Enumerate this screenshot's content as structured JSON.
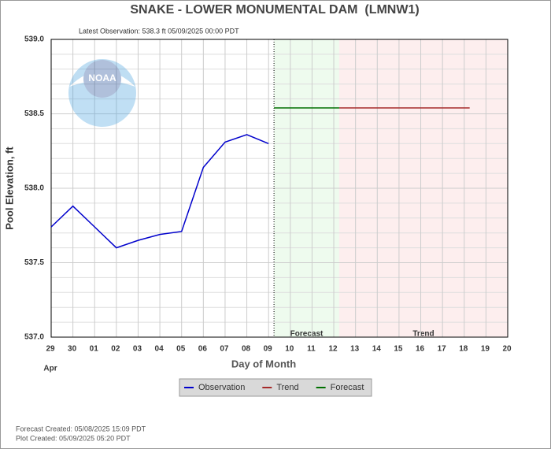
{
  "chart_data": {
    "type": "line",
    "title": "SNAKE - LOWER MONUMENTAL DAM  (LMNW1)",
    "subtitle": "Latest Observation: 538.3 ft 05/09/2025 00:00 PDT",
    "x_label": "Day of Month",
    "y_label": "Pool Elevation, ft",
    "x_sublabel": "Apr",
    "xlim": [
      0,
      21
    ],
    "xticks": [
      {
        "value": 0,
        "label": "29"
      },
      {
        "value": 1,
        "label": "30"
      },
      {
        "value": 2,
        "label": "01"
      },
      {
        "value": 3,
        "label": "02"
      },
      {
        "value": 4,
        "label": "03"
      },
      {
        "value": 5,
        "label": "04"
      },
      {
        "value": 6,
        "label": "05"
      },
      {
        "value": 7,
        "label": "06"
      },
      {
        "value": 8,
        "label": "07"
      },
      {
        "value": 9,
        "label": "08"
      },
      {
        "value": 10,
        "label": "09"
      },
      {
        "value": 11,
        "label": "10"
      },
      {
        "value": 12,
        "label": "11"
      },
      {
        "value": 13,
        "label": "12"
      },
      {
        "value": 14,
        "label": "13"
      },
      {
        "value": 15,
        "label": "14"
      },
      {
        "value": 16,
        "label": "15"
      },
      {
        "value": 17,
        "label": "16"
      },
      {
        "value": 18,
        "label": "17"
      },
      {
        "value": 19,
        "label": "18"
      },
      {
        "value": 20,
        "label": "19"
      },
      {
        "value": 21,
        "label": "20"
      }
    ],
    "ylim": [
      537,
      539
    ],
    "yticks": [
      {
        "value": 537,
        "label": "537.0"
      },
      {
        "value": 537.5,
        "label": "537.5"
      },
      {
        "value": 538,
        "label": "538.0"
      },
      {
        "value": 538.5,
        "label": "538.5"
      },
      {
        "value": 539,
        "label": "539.0"
      }
    ],
    "grid": true,
    "regions": [
      {
        "name": "Forecast",
        "xlim": [
          10.25,
          13.25
        ],
        "color": "#eefbee"
      },
      {
        "name": "Trend",
        "xlim": [
          13.25,
          21
        ],
        "color": "#fdeeee"
      }
    ],
    "series": [
      {
        "name": "Observation",
        "color": "#0000cc",
        "x": [
          0,
          1,
          2,
          3,
          4,
          5,
          6,
          7,
          8,
          9,
          10
        ],
        "values": [
          537.74,
          537.88,
          537.74,
          537.6,
          537.65,
          537.69,
          537.71,
          538.14,
          538.31,
          538.36,
          538.3
        ]
      },
      {
        "name": "Trend",
        "color": "#a52a2a",
        "x": [
          13.25,
          19.25
        ],
        "values": [
          538.54,
          538.54
        ]
      },
      {
        "name": "Forecast",
        "color": "#007000",
        "x": [
          10.25,
          13.25
        ],
        "values": [
          538.54,
          538.54
        ]
      }
    ],
    "legend": "bottom"
  },
  "footer": [
    "Forecast Created: 05/08/2025 15:09 PDT",
    "Plot Created: 05/09/2025 05:20 PDT"
  ]
}
